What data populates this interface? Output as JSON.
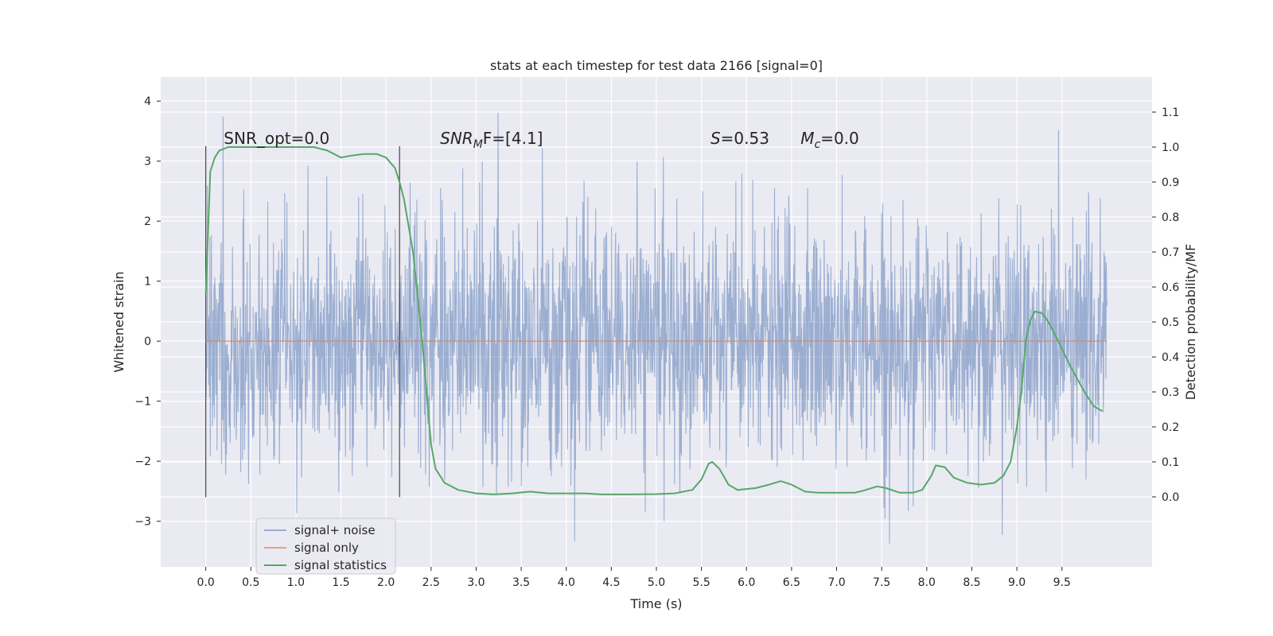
{
  "chart_data": {
    "type": "line",
    "title": "stats at each timestep for test data 2166 [signal=0]",
    "xlabel": "Time (s)",
    "ylabel_left": "Whitened strain",
    "ylabel_right": "Detection probability/MF",
    "xlim": [
      -0.5,
      10.5
    ],
    "ylim_left": [
      -3.76,
      4.4
    ],
    "ylim_right": [
      -0.2,
      1.2
    ],
    "x_ticks": [
      0.0,
      0.5,
      1.0,
      1.5,
      2.0,
      2.5,
      3.0,
      3.5,
      4.0,
      4.5,
      5.0,
      5.5,
      6.0,
      6.5,
      7.0,
      7.5,
      8.0,
      8.5,
      9.0,
      9.5
    ],
    "x_tick_labels": [
      "0.0",
      "0.5",
      "1.0",
      "1.5",
      "2.0",
      "2.5",
      "3.0",
      "3.5",
      "4.0",
      "4.5",
      "5.0",
      "5.5",
      "6.0",
      "6.5",
      "7.0",
      "7.5",
      "8.0",
      "8.5",
      "9.0",
      "9.5"
    ],
    "y_left_ticks": [
      -3,
      -2,
      -1,
      0,
      1,
      2,
      3,
      4
    ],
    "y_left_tick_labels": [
      "−3",
      "−2",
      "−1",
      "0",
      "1",
      "2",
      "3",
      "4"
    ],
    "y_right_ticks": [
      0.0,
      0.1,
      0.2,
      0.3,
      0.4,
      0.5,
      0.6,
      0.7,
      0.8,
      0.9,
      1.0,
      1.1
    ],
    "y_right_tick_labels": [
      "0.0",
      "0.1",
      "0.2",
      "0.3",
      "0.4",
      "0.5",
      "0.6",
      "0.7",
      "0.8",
      "0.9",
      "1.0",
      "1.1"
    ],
    "grid": true,
    "legend_position": "bottom-left",
    "series": [
      {
        "name": "signal+ noise",
        "axis": "left",
        "color": "#4c72b0",
        "description_range": [
          -3.4,
          4.05
        ],
        "x_range": [
          0.0,
          10.0
        ]
      },
      {
        "name": "signal only",
        "axis": "left",
        "color": "#dd8452",
        "x": [
          0.0,
          10.0
        ],
        "y": [
          0.0,
          0.0
        ]
      },
      {
        "name": "signal statistics",
        "axis": "right",
        "color": "#55a868",
        "x": [
          0.0,
          0.05,
          0.1,
          0.15,
          0.25,
          0.4,
          0.6,
          0.8,
          1.0,
          1.2,
          1.35,
          1.5,
          1.6,
          1.75,
          1.9,
          2.0,
          2.1,
          2.15,
          2.2,
          2.3,
          2.4,
          2.45,
          2.5,
          2.55,
          2.65,
          2.8,
          3.0,
          3.2,
          3.4,
          3.6,
          3.8,
          4.0,
          4.2,
          4.4,
          4.7,
          5.0,
          5.2,
          5.4,
          5.5,
          5.58,
          5.62,
          5.7,
          5.8,
          5.9,
          6.1,
          6.25,
          6.38,
          6.5,
          6.65,
          6.8,
          7.0,
          7.2,
          7.3,
          7.45,
          7.55,
          7.7,
          7.85,
          7.95,
          8.05,
          8.1,
          8.2,
          8.3,
          8.45,
          8.6,
          8.75,
          8.85,
          8.93,
          9.0,
          9.05,
          9.1,
          9.15,
          9.2,
          9.28,
          9.35,
          9.45,
          9.6,
          9.75,
          9.85,
          9.95
        ],
        "y": [
          0.58,
          0.93,
          0.97,
          0.99,
          1.0,
          1.0,
          1.0,
          1.0,
          1.0,
          1.0,
          0.99,
          0.97,
          0.975,
          0.98,
          0.98,
          0.97,
          0.94,
          0.9,
          0.85,
          0.7,
          0.45,
          0.3,
          0.15,
          0.08,
          0.04,
          0.02,
          0.01,
          0.007,
          0.01,
          0.015,
          0.01,
          0.01,
          0.01,
          0.007,
          0.007,
          0.008,
          0.01,
          0.02,
          0.05,
          0.095,
          0.1,
          0.08,
          0.035,
          0.02,
          0.025,
          0.035,
          0.045,
          0.035,
          0.015,
          0.012,
          0.012,
          0.012,
          0.018,
          0.03,
          0.025,
          0.012,
          0.012,
          0.02,
          0.06,
          0.09,
          0.085,
          0.055,
          0.04,
          0.035,
          0.04,
          0.06,
          0.1,
          0.2,
          0.3,
          0.45,
          0.505,
          0.53,
          0.525,
          0.5,
          0.45,
          0.37,
          0.3,
          0.26,
          0.245
        ]
      }
    ],
    "annotations": [
      {
        "text_main": "SNR_opt=0.0",
        "x": 0.2
      },
      {
        "text_main": "SNR",
        "sub": "M",
        "text_tail": "F=[4.1]",
        "x": 2.6
      },
      {
        "text_main": "S",
        "text_tail": "=0.53",
        "x": 5.6
      },
      {
        "text_main": "M",
        "sub": "c",
        "text_tail": "=0.0",
        "x": 6.6
      }
    ],
    "vertical_markers": [
      0.0,
      2.15
    ]
  }
}
